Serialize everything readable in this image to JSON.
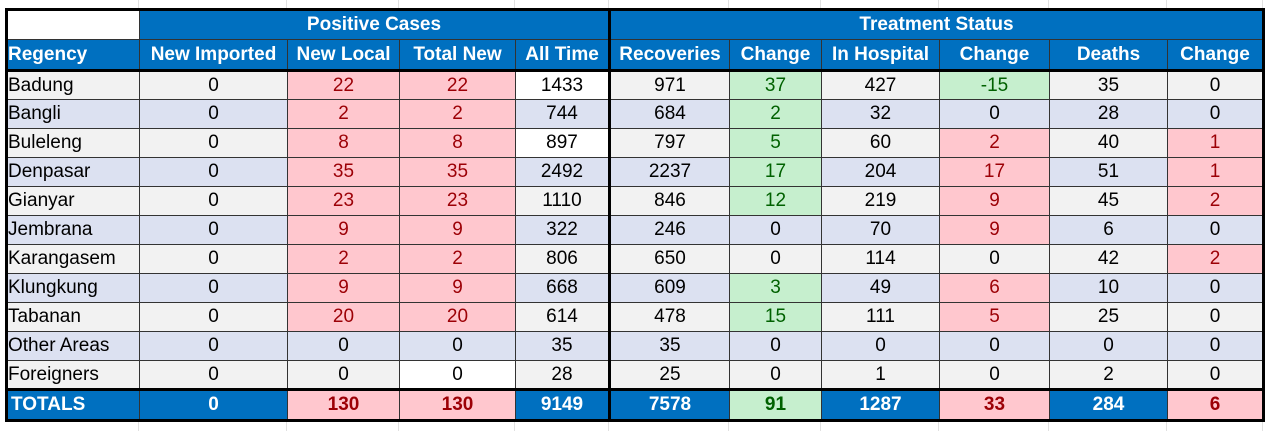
{
  "colors": {
    "header_blue": "#0070c0",
    "row_gray": "#f2f2f2",
    "row_blue": "#dce1f1",
    "red_fill": "#ffc7ce",
    "red_text": "#9c0006",
    "green_fill": "#c6efce",
    "green_text": "#006100"
  },
  "groups": {
    "positive_cases": "Positive Cases",
    "treatment_status": "Treatment Status"
  },
  "columns": {
    "regency": "Regency",
    "new_imported": "New Imported",
    "new_local": "New Local",
    "total_new": "Total New",
    "all_time": "All Time",
    "recoveries": "Recoveries",
    "rec_change": "Change",
    "in_hospital": "In Hospital",
    "hosp_change": "Change",
    "deaths": "Deaths",
    "death_change": "Change"
  },
  "rows": [
    {
      "regency": "Badung",
      "new_imported": "0",
      "new_local": "22",
      "total_new": "22",
      "all_time": "1433",
      "recoveries": "971",
      "rec_change": "37",
      "in_hospital": "427",
      "hosp_change": "-15",
      "deaths": "35",
      "death_change": "0"
    },
    {
      "regency": "Bangli",
      "new_imported": "0",
      "new_local": "2",
      "total_new": "2",
      "all_time": "744",
      "recoveries": "684",
      "rec_change": "2",
      "in_hospital": "32",
      "hosp_change": "0",
      "deaths": "28",
      "death_change": "0"
    },
    {
      "regency": "Buleleng",
      "new_imported": "0",
      "new_local": "8",
      "total_new": "8",
      "all_time": "897",
      "recoveries": "797",
      "rec_change": "5",
      "in_hospital": "60",
      "hosp_change": "2",
      "deaths": "40",
      "death_change": "1"
    },
    {
      "regency": "Denpasar",
      "new_imported": "0",
      "new_local": "35",
      "total_new": "35",
      "all_time": "2492",
      "recoveries": "2237",
      "rec_change": "17",
      "in_hospital": "204",
      "hosp_change": "17",
      "deaths": "51",
      "death_change": "1"
    },
    {
      "regency": "Gianyar",
      "new_imported": "0",
      "new_local": "23",
      "total_new": "23",
      "all_time": "1110",
      "recoveries": "846",
      "rec_change": "12",
      "in_hospital": "219",
      "hosp_change": "9",
      "deaths": "45",
      "death_change": "2"
    },
    {
      "regency": "Jembrana",
      "new_imported": "0",
      "new_local": "9",
      "total_new": "9",
      "all_time": "322",
      "recoveries": "246",
      "rec_change": "0",
      "in_hospital": "70",
      "hosp_change": "9",
      "deaths": "6",
      "death_change": "0"
    },
    {
      "regency": "Karangasem",
      "new_imported": "0",
      "new_local": "2",
      "total_new": "2",
      "all_time": "806",
      "recoveries": "650",
      "rec_change": "0",
      "in_hospital": "114",
      "hosp_change": "0",
      "deaths": "42",
      "death_change": "2"
    },
    {
      "regency": "Klungkung",
      "new_imported": "0",
      "new_local": "9",
      "total_new": "9",
      "all_time": "668",
      "recoveries": "609",
      "rec_change": "3",
      "in_hospital": "49",
      "hosp_change": "6",
      "deaths": "10",
      "death_change": "0"
    },
    {
      "regency": "Tabanan",
      "new_imported": "0",
      "new_local": "20",
      "total_new": "20",
      "all_time": "614",
      "recoveries": "478",
      "rec_change": "15",
      "in_hospital": "111",
      "hosp_change": "5",
      "deaths": "25",
      "death_change": "0"
    },
    {
      "regency": "Other Areas",
      "new_imported": "0",
      "new_local": "0",
      "total_new": "0",
      "all_time": "35",
      "recoveries": "35",
      "rec_change": "0",
      "in_hospital": "0",
      "hosp_change": "0",
      "deaths": "0",
      "death_change": "0"
    },
    {
      "regency": "Foreigners",
      "new_imported": "0",
      "new_local": "0",
      "total_new": "0",
      "all_time": "28",
      "recoveries": "25",
      "rec_change": "0",
      "in_hospital": "1",
      "hosp_change": "0",
      "deaths": "2",
      "death_change": "0"
    }
  ],
  "totals": {
    "regency": "TOTALS",
    "new_imported": "0",
    "new_local": "130",
    "total_new": "130",
    "all_time": "9149",
    "recoveries": "7578",
    "rec_change": "91",
    "in_hospital": "1287",
    "hosp_change": "33",
    "deaths": "284",
    "death_change": "6"
  }
}
